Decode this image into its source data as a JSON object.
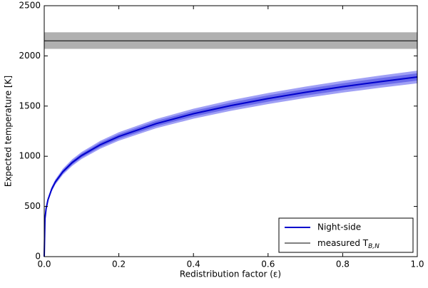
{
  "chart_data": {
    "type": "line",
    "xlabel": "Redistribution factor (ε)",
    "ylabel": "Expected temperature [K]",
    "xlim": [
      0,
      1
    ],
    "ylim": [
      0,
      2500
    ],
    "xticks": [
      {
        "value": 0,
        "label": "0.0"
      },
      {
        "value": 0.2,
        "label": "0.2"
      },
      {
        "value": 0.4,
        "label": "0.4"
      },
      {
        "value": 0.6,
        "label": "0.6"
      },
      {
        "value": 0.8,
        "label": "0.8"
      },
      {
        "value": 1,
        "label": "1.0"
      }
    ],
    "yticks": [
      0,
      500,
      1000,
      1500,
      2000,
      2500
    ],
    "x": [
      0,
      0.002,
      0.005,
      0.01,
      0.02,
      0.03,
      0.05,
      0.075,
      0.1,
      0.15,
      0.2,
      0.3,
      0.4,
      0.5,
      0.6,
      0.7,
      0.8,
      0.9,
      1.0
    ],
    "series": [
      {
        "name": "Night-side",
        "color": "#0000cc",
        "values": [
          0,
          379,
          476,
          566,
          673,
          745,
          846,
          937,
          1007,
          1114,
          1197,
          1325,
          1424,
          1505,
          1575,
          1637,
          1693,
          1743,
          1790
        ]
      }
    ],
    "bands": [
      {
        "color": "#a0a0f5",
        "lower": [
          0,
          366,
          459,
          546,
          649,
          719,
          816,
          904,
          972,
          1075,
          1155,
          1279,
          1374,
          1452,
          1520,
          1580,
          1634,
          1682,
          1727
        ],
        "upper": [
          0,
          392,
          493,
          586,
          697,
          771,
          876,
          970,
          1042,
          1153,
          1239,
          1371,
          1474,
          1558,
          1630,
          1694,
          1752,
          1804,
          1853
        ]
      },
      {
        "color": "#6b6bea",
        "lower": [
          0,
          371,
          466,
          555,
          660,
          730,
          829,
          918,
          987,
          1092,
          1173,
          1299,
          1396,
          1475,
          1544,
          1604,
          1659,
          1708,
          1754
        ],
        "upper": [
          0,
          387,
          486,
          577,
          686,
          760,
          863,
          956,
          1027,
          1136,
          1221,
          1352,
          1452,
          1535,
          1607,
          1670,
          1727,
          1778,
          1826
        ]
      }
    ],
    "reference": {
      "name": "measured T",
      "subscript": "B,N",
      "color": "#000000",
      "value": 2150,
      "lower": 2070,
      "upper": 2235,
      "band_color": "#b0b0b0"
    },
    "legend": "lower right"
  }
}
